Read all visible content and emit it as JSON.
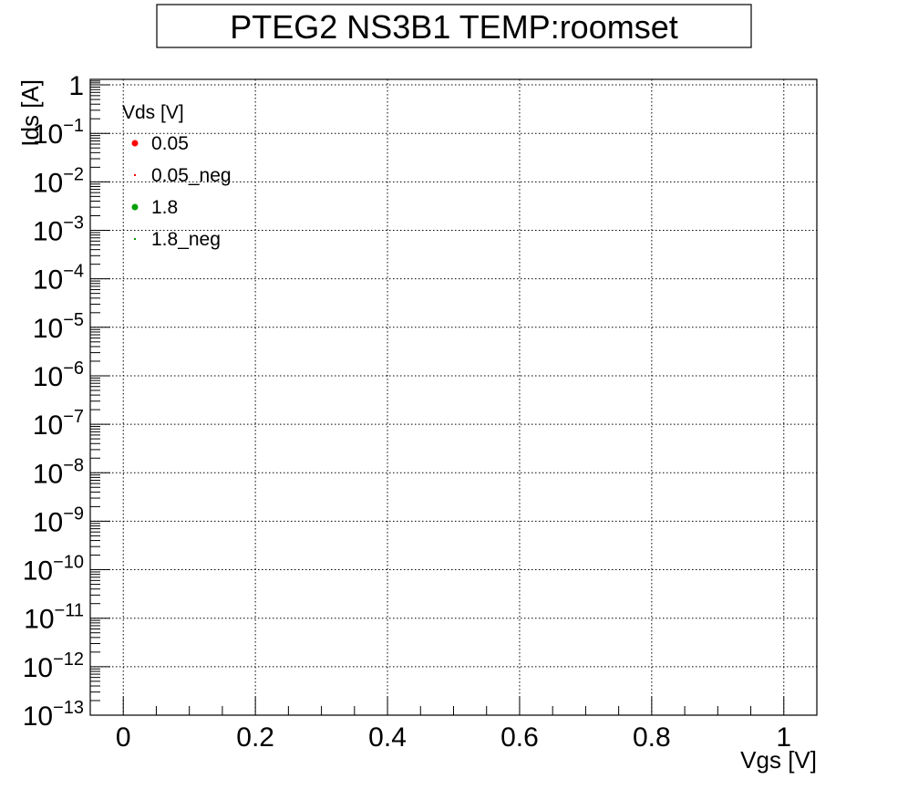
{
  "chart_data": {
    "type": "scatter",
    "title": "PTEG2 NS3B1 TEMP:roomset",
    "xlabel": "Vgs [V]",
    "ylabel": "Ids [A]",
    "xlim": [
      -0.05,
      1.05
    ],
    "ylim": [
      1e-13,
      1.3
    ],
    "xscale": "linear",
    "yscale": "log",
    "grid": true,
    "legend_position": "top-left",
    "legend_title": "Vds [V]",
    "x_ticks": [
      "0",
      "0.2",
      "0.4",
      "0.6",
      "0.8",
      "1"
    ],
    "y_ticks": [
      {
        "base": "1",
        "exp": ""
      },
      {
        "base": "10",
        "exp": "−1"
      },
      {
        "base": "10",
        "exp": "−2"
      },
      {
        "base": "10",
        "exp": "−3"
      },
      {
        "base": "10",
        "exp": "−4"
      },
      {
        "base": "10",
        "exp": "−5"
      },
      {
        "base": "10",
        "exp": "−6"
      },
      {
        "base": "10",
        "exp": "−7"
      },
      {
        "base": "10",
        "exp": "−8"
      },
      {
        "base": "10",
        "exp": "−9"
      },
      {
        "base": "10",
        "exp": "−10"
      },
      {
        "base": "10",
        "exp": "−11"
      },
      {
        "base": "10",
        "exp": "−12"
      },
      {
        "base": "10",
        "exp": "−13"
      }
    ],
    "series": [
      {
        "name": "0.05",
        "color": "#ff0000",
        "marker": "circle",
        "x": [],
        "y": []
      },
      {
        "name": "0.05_neg",
        "color": "#ff0000",
        "marker": "dot",
        "x": [],
        "y": []
      },
      {
        "name": "1.8",
        "color": "#00a000",
        "marker": "circle",
        "x": [],
        "y": []
      },
      {
        "name": "1.8_neg",
        "color": "#00a000",
        "marker": "dot",
        "x": [],
        "y": []
      }
    ]
  }
}
